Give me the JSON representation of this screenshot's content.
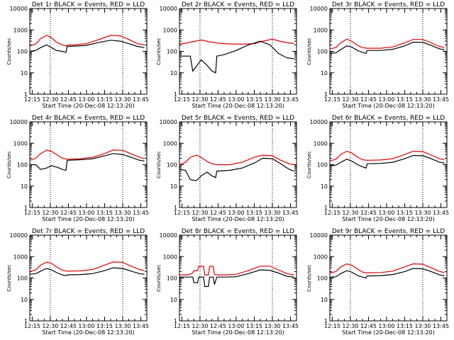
{
  "figure": {
    "start_time_label": "Start Time (20-Dec-08 12:13:20)"
  },
  "colors": {
    "events": "#000000",
    "lld": "#e00000"
  },
  "chart_data": [
    {
      "type": "line",
      "title": "Det 1r BLACK = Events, RED = LLD",
      "xlabel": "Start Time (20-Dec-08 12:13:20)",
      "ylabel": "Counts/sec",
      "yscale": "log",
      "ylim": [
        1,
        10000
      ],
      "x_ticks": [
        "12:15",
        "12:30",
        "12:45",
        "13:00",
        "13:15",
        "13:30",
        "13:45"
      ],
      "y_ticks": [
        "1",
        "10",
        "100",
        "1000",
        "10000"
      ],
      "x_markers": [
        "12:30",
        "13:30"
      ],
      "series": [
        {
          "name": "BLACK = Events",
          "color": "#000000",
          "x": [
            "12:13",
            "12:18",
            "12:22",
            "12:27",
            "12:31",
            "12:35",
            "12:40",
            "12:43",
            "12:44",
            "12:50",
            "13:00",
            "13:10",
            "13:20",
            "13:28",
            "13:35",
            "13:42",
            "13:48"
          ],
          "y": [
            100,
            110,
            150,
            200,
            150,
            110,
            100,
            90,
            170,
            175,
            190,
            260,
            330,
            300,
            230,
            170,
            150
          ]
        },
        {
          "name": "RED = LLD",
          "color": "#e00000",
          "x": [
            "12:13",
            "12:18",
            "12:22",
            "12:27",
            "12:31",
            "12:35",
            "12:40",
            "12:43",
            "12:44",
            "12:50",
            "13:00",
            "13:10",
            "13:20",
            "13:28",
            "13:35",
            "13:42",
            "13:48"
          ],
          "y": [
            180,
            220,
            400,
            560,
            430,
            270,
            200,
            180,
            195,
            200,
            230,
            350,
            560,
            530,
            360,
            230,
            200
          ]
        }
      ]
    },
    {
      "type": "line",
      "title": "Det 2r BLACK = Events, RED = LLD",
      "xlabel": "Start Time (20-Dec-08 12:13:20)",
      "ylabel": "Counts/sec",
      "yscale": "log",
      "ylim": [
        1,
        10000
      ],
      "x_ticks": [
        "12:15",
        "12:30",
        "12:45",
        "13:00",
        "13:15",
        "13:30",
        "13:45"
      ],
      "y_ticks": [
        "1",
        "10",
        "100",
        "1000",
        "10000"
      ],
      "x_markers": [
        "12:30",
        "13:30"
      ],
      "series": [
        {
          "name": "BLACK = Events",
          "color": "#000000",
          "x": [
            "12:13",
            "12:18",
            "12:22",
            "12:24",
            "12:27",
            "12:31",
            "12:35",
            "12:40",
            "12:43",
            "12:44",
            "12:50",
            "13:00",
            "13:10",
            "13:20",
            "13:28",
            "13:35",
            "13:42",
            "13:48"
          ],
          "y": [
            60,
            60,
            60,
            12,
            20,
            40,
            25,
            12,
            10,
            60,
            70,
            110,
            200,
            300,
            200,
            80,
            50,
            45
          ]
        },
        {
          "name": "RED = LLD",
          "color": "#e00000",
          "x": [
            "12:13",
            "12:18",
            "12:24",
            "12:31",
            "12:38",
            "12:45",
            "12:55",
            "13:05",
            "13:15",
            "13:22",
            "13:30",
            "13:38",
            "13:48"
          ],
          "y": [
            220,
            240,
            280,
            340,
            280,
            240,
            220,
            215,
            230,
            300,
            370,
            280,
            230
          ]
        }
      ]
    },
    {
      "type": "line",
      "title": "Det 3r BLACK = Events, RED = LLD",
      "xlabel": "Start Time (20-Dec-08 12:13:20)",
      "ylabel": "Counts/sec",
      "yscale": "log",
      "ylim": [
        1,
        10000
      ],
      "x_ticks": [
        "12:15",
        "12:30",
        "12:45",
        "13:00",
        "13:15",
        "13:30",
        "13:45"
      ],
      "y_ticks": [
        "1",
        "10",
        "100",
        "1000",
        "10000"
      ],
      "x_markers": [
        "12:30",
        "13:30"
      ],
      "series": [
        {
          "name": "BLACK = Events",
          "color": "#000000",
          "x": [
            "12:13",
            "12:18",
            "12:22",
            "12:27",
            "12:31",
            "12:36",
            "12:40",
            "12:43",
            "12:44",
            "12:55",
            "13:05",
            "13:15",
            "13:22",
            "13:30",
            "13:37",
            "13:44",
            "13:48"
          ],
          "y": [
            80,
            85,
            120,
            180,
            160,
            110,
            90,
            80,
            110,
            110,
            125,
            180,
            270,
            260,
            190,
            130,
            120
          ]
        },
        {
          "name": "RED = LLD",
          "color": "#e00000",
          "x": [
            "12:13",
            "12:18",
            "12:22",
            "12:27",
            "12:31",
            "12:36",
            "12:40",
            "12:44",
            "12:55",
            "13:05",
            "13:15",
            "13:22",
            "13:30",
            "13:37",
            "13:44",
            "13:48"
          ],
          "y": [
            130,
            150,
            250,
            370,
            300,
            190,
            150,
            140,
            140,
            160,
            250,
            360,
            360,
            250,
            170,
            150
          ]
        }
      ]
    },
    {
      "type": "line",
      "title": "Det 4r BLACK = Events, RED = LLD",
      "xlabel": "Start Time (20-Dec-08 12:13:20)",
      "ylabel": "Counts/sec",
      "yscale": "log",
      "ylim": [
        1,
        10000
      ],
      "x_ticks": [
        "12:15",
        "12:30",
        "12:45",
        "13:00",
        "13:15",
        "13:30",
        "13:45"
      ],
      "y_ticks": [
        "1",
        "10",
        "100",
        "1000",
        "10000"
      ],
      "x_markers": [
        "12:30",
        "13:30"
      ],
      "series": [
        {
          "name": "BLACK = Events",
          "color": "#000000",
          "x": [
            "12:13",
            "12:18",
            "12:22",
            "12:27",
            "12:31",
            "12:36",
            "12:40",
            "12:43",
            "12:44",
            "12:55",
            "13:05",
            "13:15",
            "13:22",
            "13:30",
            "13:37",
            "13:44",
            "13:48"
          ],
          "y": [
            100,
            100,
            60,
            70,
            90,
            75,
            60,
            55,
            160,
            170,
            190,
            260,
            330,
            300,
            220,
            160,
            150
          ]
        },
        {
          "name": "RED = LLD",
          "color": "#e00000",
          "x": [
            "12:13",
            "12:18",
            "12:22",
            "12:27",
            "12:31",
            "12:36",
            "12:40",
            "12:44",
            "12:55",
            "13:05",
            "13:15",
            "13:22",
            "13:30",
            "13:37",
            "13:44",
            "13:48"
          ],
          "y": [
            160,
            200,
            330,
            480,
            420,
            280,
            200,
            180,
            190,
            220,
            330,
            480,
            470,
            320,
            220,
            190
          ]
        }
      ]
    },
    {
      "type": "line",
      "title": "Det 5r BLACK = Events, RED = LLD",
      "xlabel": "Start Time (20-Dec-08 12:13:20)",
      "ylabel": "Counts/sec",
      "yscale": "log",
      "ylim": [
        1,
        10000
      ],
      "x_ticks": [
        "12:15",
        "12:30",
        "12:45",
        "13:00",
        "13:15",
        "13:30",
        "13:45"
      ],
      "y_ticks": [
        "1",
        "10",
        "100",
        "1000",
        "10000"
      ],
      "x_markers": [
        "12:30",
        "13:30"
      ],
      "series": [
        {
          "name": "BLACK = Events",
          "color": "#000000",
          "x": [
            "12:13",
            "12:18",
            "12:22",
            "12:27",
            "12:31",
            "12:36",
            "12:40",
            "12:43",
            "12:44",
            "12:55",
            "13:05",
            "13:15",
            "13:22",
            "13:30",
            "13:37",
            "13:44",
            "13:48"
          ],
          "y": [
            60,
            55,
            20,
            18,
            30,
            45,
            30,
            25,
            50,
            55,
            70,
            120,
            200,
            190,
            110,
            60,
            50
          ]
        },
        {
          "name": "RED = LLD",
          "color": "#e00000",
          "x": [
            "12:13",
            "12:18",
            "12:22",
            "12:27",
            "12:31",
            "12:36",
            "12:40",
            "12:44",
            "12:55",
            "13:05",
            "13:15",
            "13:22",
            "13:30",
            "13:37",
            "13:44",
            "13:48"
          ],
          "y": [
            100,
            130,
            220,
            280,
            220,
            140,
            110,
            100,
            100,
            130,
            220,
            280,
            260,
            160,
            110,
            100
          ]
        }
      ]
    },
    {
      "type": "line",
      "title": "Det 6r BLACK = Events, RED = LLD",
      "xlabel": "Start Time (20-Dec-08 12:13:20)",
      "ylabel": "Counts/sec",
      "yscale": "log",
      "ylim": [
        1,
        10000
      ],
      "x_ticks": [
        "12:15",
        "12:30",
        "12:45",
        "13:00",
        "13:15",
        "13:30",
        "13:45"
      ],
      "y_ticks": [
        "1",
        "10",
        "100",
        "1000",
        "10000"
      ],
      "x_markers": [
        "12:30",
        "13:30"
      ],
      "series": [
        {
          "name": "BLACK = Events",
          "color": "#000000",
          "x": [
            "12:13",
            "12:18",
            "12:22",
            "12:27",
            "12:31",
            "12:36",
            "12:40",
            "12:43",
            "12:44",
            "12:55",
            "13:05",
            "13:15",
            "13:22",
            "13:30",
            "13:37",
            "13:44",
            "13:48"
          ],
          "y": [
            90,
            95,
            130,
            180,
            150,
            100,
            80,
            70,
            110,
            115,
            130,
            190,
            270,
            260,
            190,
            130,
            120
          ]
        },
        {
          "name": "RED = LLD",
          "color": "#e00000",
          "x": [
            "12:13",
            "12:18",
            "12:22",
            "12:27",
            "12:31",
            "12:36",
            "12:40",
            "12:44",
            "12:55",
            "13:05",
            "13:15",
            "13:22",
            "13:30",
            "13:37",
            "13:44",
            "13:48"
          ],
          "y": [
            150,
            180,
            300,
            420,
            360,
            230,
            170,
            160,
            165,
            190,
            300,
            420,
            410,
            280,
            190,
            170
          ]
        }
      ]
    },
    {
      "type": "line",
      "title": "Det 7r BLACK = Events, RED = LLD",
      "xlabel": "Start Time (20-Dec-08 12:13:20)",
      "ylabel": "Counts/sec",
      "yscale": "log",
      "ylim": [
        1,
        10000
      ],
      "x_ticks": [
        "12:15",
        "12:30",
        "12:45",
        "13:00",
        "13:15",
        "13:30",
        "13:45"
      ],
      "y_ticks": [
        "1",
        "10",
        "100",
        "1000",
        "10000"
      ],
      "x_markers": [
        "12:30",
        "13:30"
      ],
      "series": [
        {
          "name": "BLACK = Events",
          "color": "#000000",
          "x": [
            "12:13",
            "12:18",
            "12:22",
            "12:27",
            "12:31",
            "12:36",
            "12:40",
            "12:43",
            "12:44",
            "12:55",
            "13:05",
            "13:15",
            "13:22",
            "13:30",
            "13:37",
            "13:44",
            "13:48"
          ],
          "y": [
            150,
            160,
            210,
            280,
            240,
            170,
            140,
            130,
            140,
            145,
            160,
            220,
            300,
            280,
            210,
            160,
            150
          ]
        },
        {
          "name": "RED = LLD",
          "color": "#e00000",
          "x": [
            "12:13",
            "12:18",
            "12:22",
            "12:27",
            "12:31",
            "12:36",
            "12:40",
            "12:44",
            "12:55",
            "13:05",
            "13:15",
            "13:22",
            "13:30",
            "13:37",
            "13:44",
            "13:48"
          ],
          "y": [
            200,
            240,
            400,
            560,
            480,
            310,
            230,
            210,
            215,
            250,
            400,
            560,
            540,
            360,
            250,
            220
          ]
        }
      ]
    },
    {
      "type": "line",
      "title": "Det 8r BLACK = Events, RED = LLD",
      "xlabel": "Start Time (20-Dec-08 12:13:20)",
      "ylabel": "Counts/sec",
      "yscale": "log",
      "ylim": [
        1,
        10000
      ],
      "x_ticks": [
        "12:15",
        "12:30",
        "12:45",
        "13:00",
        "13:15",
        "13:30",
        "13:45"
      ],
      "y_ticks": [
        "1",
        "10",
        "100",
        "1000",
        "10000"
      ],
      "x_markers": [
        "12:30",
        "13:30"
      ],
      "series": [
        {
          "name": "BLACK = Events",
          "color": "#000000",
          "x": [
            "12:13",
            "12:20",
            "12:24",
            "12:25",
            "12:28",
            "12:29",
            "12:33",
            "12:34",
            "12:37",
            "12:38",
            "12:41",
            "12:42",
            "12:44",
            "12:50",
            "13:00",
            "13:10",
            "13:20",
            "13:28",
            "13:35",
            "13:42",
            "13:48"
          ],
          "y": [
            110,
            110,
            110,
            60,
            60,
            110,
            110,
            40,
            40,
            110,
            110,
            50,
            110,
            110,
            115,
            160,
            240,
            230,
            170,
            120,
            110
          ]
        },
        {
          "name": "RED = LLD",
          "color": "#e00000",
          "x": [
            "12:13",
            "12:20",
            "12:24",
            "12:25",
            "12:28",
            "12:29",
            "12:33",
            "12:34",
            "12:37",
            "12:38",
            "12:41",
            "12:42",
            "12:44",
            "12:50",
            "13:00",
            "13:10",
            "13:20",
            "13:28",
            "13:35",
            "13:42",
            "13:48"
          ],
          "y": [
            140,
            140,
            170,
            220,
            220,
            350,
            350,
            140,
            140,
            350,
            350,
            150,
            140,
            140,
            150,
            220,
            360,
            360,
            240,
            160,
            140
          ]
        }
      ]
    },
    {
      "type": "line",
      "title": "Det 9r BLACK = Events, RED = LLD",
      "xlabel": "Start Time (20-Dec-08 12:13:20)",
      "ylabel": "Counts/sec",
      "yscale": "log",
      "ylim": [
        1,
        10000
      ],
      "x_ticks": [
        "12:15",
        "12:30",
        "12:45",
        "13:00",
        "13:15",
        "13:30",
        "13:45"
      ],
      "y_ticks": [
        "1",
        "10",
        "100",
        "1000",
        "10000"
      ],
      "x_markers": [
        "12:30",
        "13:30"
      ],
      "series": [
        {
          "name": "BLACK = Events",
          "color": "#000000",
          "x": [
            "12:13",
            "12:18",
            "12:22",
            "12:27",
            "12:31",
            "12:36",
            "12:40",
            "12:43",
            "12:44",
            "12:55",
            "13:05",
            "13:15",
            "13:22",
            "13:30",
            "13:37",
            "13:44",
            "13:48"
          ],
          "y": [
            110,
            115,
            160,
            220,
            190,
            130,
            110,
            100,
            125,
            130,
            145,
            200,
            280,
            270,
            200,
            140,
            130
          ]
        },
        {
          "name": "RED = LLD",
          "color": "#e00000",
          "x": [
            "12:13",
            "12:18",
            "12:22",
            "12:27",
            "12:31",
            "12:36",
            "12:40",
            "12:44",
            "12:55",
            "13:05",
            "13:15",
            "13:22",
            "13:30",
            "13:37",
            "13:44",
            "13:48"
          ],
          "y": [
            170,
            200,
            330,
            460,
            400,
            260,
            190,
            175,
            180,
            210,
            330,
            460,
            440,
            300,
            200,
            180
          ]
        }
      ]
    }
  ]
}
